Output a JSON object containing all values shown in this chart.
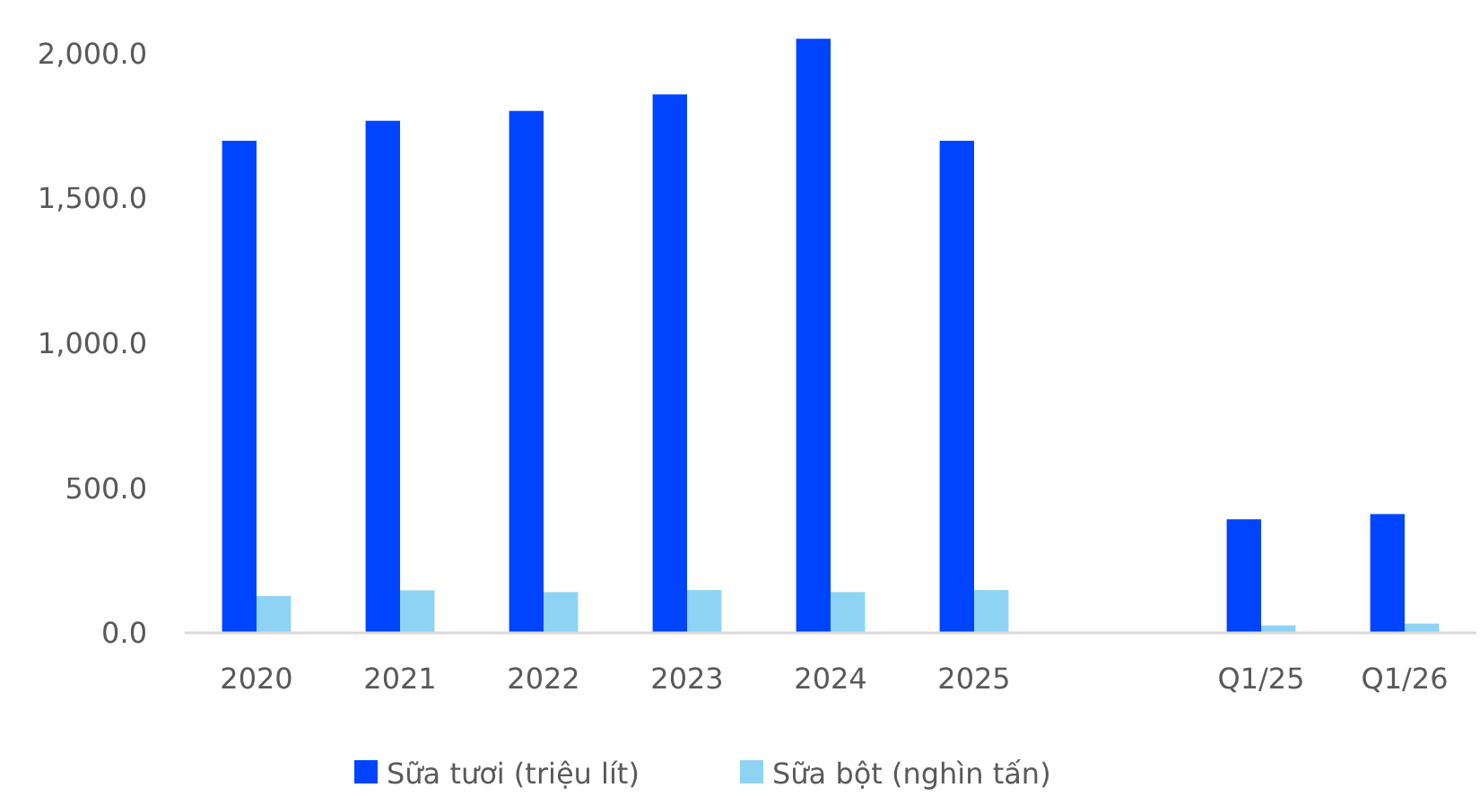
{
  "chart_data": {
    "type": "bar",
    "categories": [
      "2020",
      "2021",
      "2022",
      "2023",
      "2024",
      "2025",
      null,
      "Q1/25",
      "Q1/26"
    ],
    "series": [
      {
        "name": "Sữa tươi (triệu lít)",
        "color": "#0044ff",
        "values": [
          1698,
          1767,
          1801,
          1858,
          2050,
          1698,
          null,
          392,
          410
        ]
      },
      {
        "name": "Sữa bột (nghìn tấn)",
        "color": "#8fd3f4",
        "values": [
          127,
          147,
          141,
          148,
          141,
          148,
          null,
          26,
          32
        ]
      }
    ],
    "ylim": [
      0,
      2060
    ],
    "yticks": [
      {
        "value": 0,
        "label": "0.0"
      },
      {
        "value": 500,
        "label": "500.0"
      },
      {
        "value": 1000,
        "label": "1,000.0"
      },
      {
        "value": 1500,
        "label": "1,500.0"
      },
      {
        "value": 2000,
        "label": "2,000.0"
      }
    ],
    "grid": false,
    "legend": "bottom"
  }
}
